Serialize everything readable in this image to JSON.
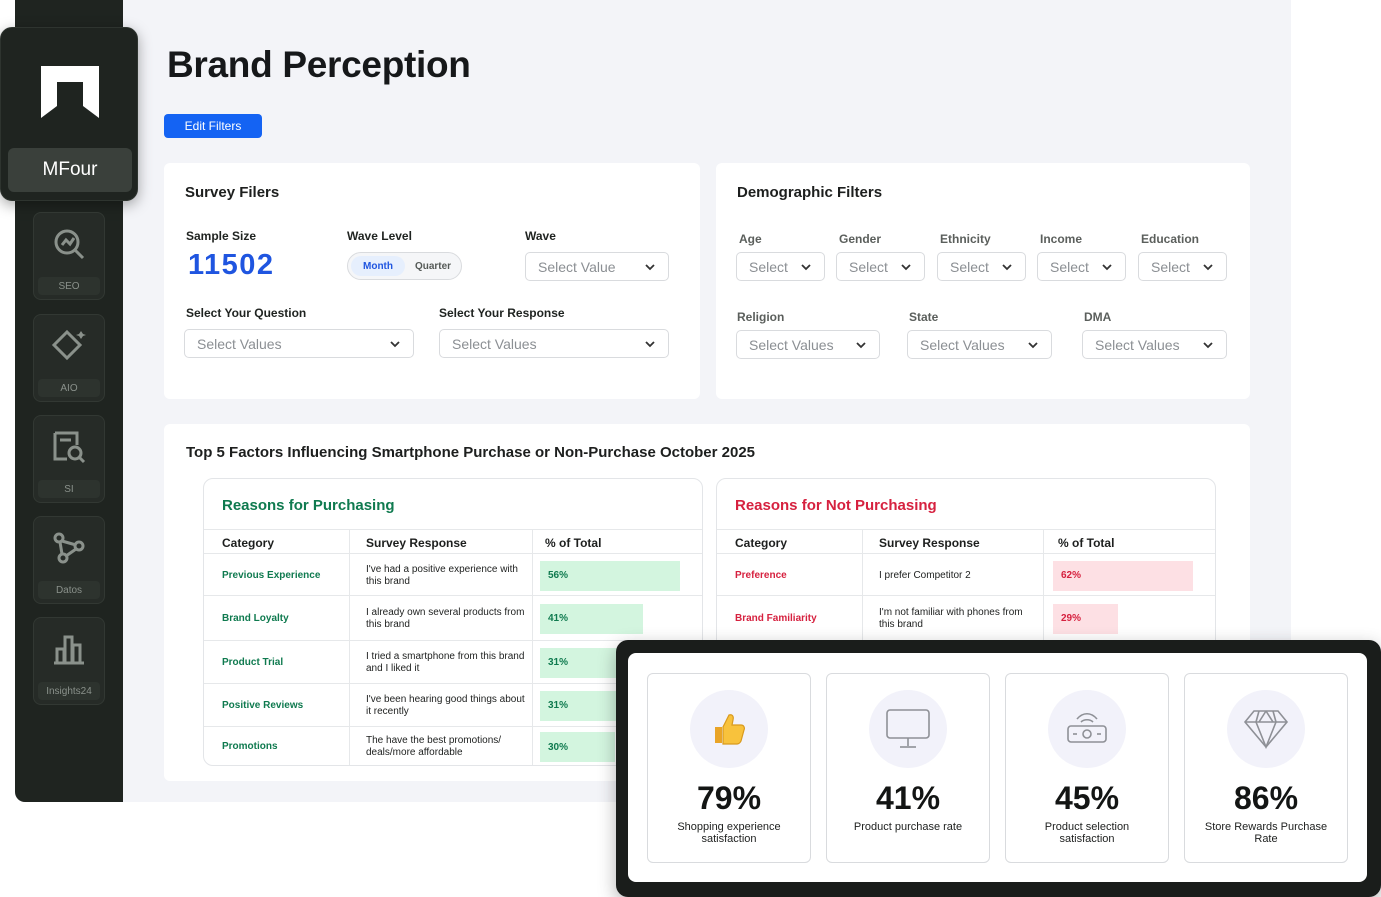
{
  "brand": {
    "name": "MFour"
  },
  "nav": [
    {
      "label": "SEO",
      "icon": "seo-search-icon"
    },
    {
      "label": "AIO",
      "icon": "diamond-sparkle-icon"
    },
    {
      "label": "SI",
      "icon": "document-search-icon"
    },
    {
      "label": "Datos",
      "icon": "nodes-icon"
    },
    {
      "label": "Insights24",
      "icon": "bar-chart-icon"
    }
  ],
  "page": {
    "title": "Brand Perception",
    "edit_filters": "Edit Filters"
  },
  "survey": {
    "title": "Survey Filers",
    "sample_label": "Sample Size",
    "sample_value": "11502",
    "wave_level_label": "Wave Level",
    "wave_level_options": [
      "Month",
      "Quarter"
    ],
    "wave_level_selected": "Month",
    "wave_label": "Wave",
    "wave_placeholder": "Select Value",
    "question_label": "Select Your Question",
    "question_placeholder": "Select Values",
    "response_label": "Select Your Response",
    "response_placeholder": "Select Values"
  },
  "demographic": {
    "title": "Demographic Filters",
    "row1": [
      {
        "label": "Age",
        "placeholder": "Select"
      },
      {
        "label": "Gender",
        "placeholder": "Select"
      },
      {
        "label": "Ethnicity",
        "placeholder": "Select"
      },
      {
        "label": "Income",
        "placeholder": "Select"
      },
      {
        "label": "Education",
        "placeholder": "Select"
      }
    ],
    "row2": [
      {
        "label": "Religion",
        "placeholder": "Select Values"
      },
      {
        "label": "State",
        "placeholder": "Select Values"
      },
      {
        "label": "DMA",
        "placeholder": "Select Values"
      }
    ]
  },
  "factors": {
    "title": "Top 5 Factors Influencing Smartphone Purchase or Non-Purchase October 2025",
    "columns": [
      "Category",
      "Survey Response",
      "% of Total"
    ],
    "purchasing": {
      "title": "Reasons for Purchasing",
      "color": "#0f7a4f",
      "bar_color": "#d3f5df",
      "rows": [
        {
          "category": "Previous Experience",
          "response": "I've had a positive experience with this brand",
          "pct": "56%",
          "value": 56
        },
        {
          "category": "Brand Loyalty",
          "response": "I already own several products from this brand",
          "pct": "41%",
          "value": 41
        },
        {
          "category": "Product Trial",
          "response": "I tried a smartphone from this brand and I liked it",
          "pct": "31%",
          "value": 31
        },
        {
          "category": "Positive Reviews",
          "response": "I've been hearing good things about it recently",
          "pct": "31%",
          "value": 31
        },
        {
          "category": "Promotions",
          "response": "The have the best promotions/ deals/more affordable",
          "pct": "30%",
          "value": 30
        }
      ]
    },
    "not_purchasing": {
      "title": "Reasons for Not Purchasing",
      "color": "#d6213f",
      "bar_color": "#fde0e4",
      "rows": [
        {
          "category": "Preference",
          "response": "I prefer Competitor 2",
          "pct": "62%",
          "value": 62
        },
        {
          "category": "Brand Familiarity",
          "response": "I'm not familiar with phones from this brand",
          "pct": "29%",
          "value": 29
        }
      ]
    }
  },
  "stats": [
    {
      "value": "79%",
      "caption": "Shopping experience satisfaction",
      "icon": "thumbs-up-icon"
    },
    {
      "value": "41%",
      "caption": "Product purchase rate",
      "icon": "monitor-icon"
    },
    {
      "value": "45%",
      "caption": "Product selection satisfaction",
      "icon": "wallet-icon"
    },
    {
      "value": "86%",
      "caption": "Store Rewards Purchase Rate",
      "icon": "diamond-icon"
    }
  ]
}
